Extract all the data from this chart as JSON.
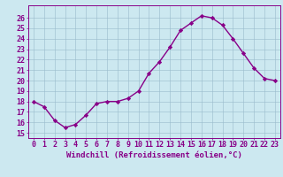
{
  "x": [
    0,
    1,
    2,
    3,
    4,
    5,
    6,
    7,
    8,
    9,
    10,
    11,
    12,
    13,
    14,
    15,
    16,
    17,
    18,
    19,
    20,
    21,
    22,
    23
  ],
  "y": [
    18.0,
    17.5,
    16.2,
    15.5,
    15.8,
    16.7,
    17.8,
    18.0,
    18.0,
    18.3,
    19.0,
    20.7,
    21.8,
    23.2,
    24.8,
    25.5,
    26.2,
    26.0,
    25.3,
    24.0,
    22.6,
    21.2,
    20.2,
    20.0
  ],
  "line_color": "#880088",
  "marker": "D",
  "marker_size": 2.2,
  "bg_color": "#cce8f0",
  "grid_color": "#99bbcc",
  "xlabel": "Windchill (Refroidissement éolien,°C)",
  "yticks": [
    15,
    16,
    17,
    18,
    19,
    20,
    21,
    22,
    23,
    24,
    25,
    26
  ],
  "xlim": [
    -0.5,
    23.5
  ],
  "ylim": [
    14.5,
    27.2
  ],
  "xlabel_fontsize": 6.5,
  "tick_fontsize": 6.0,
  "line_width": 1.0
}
